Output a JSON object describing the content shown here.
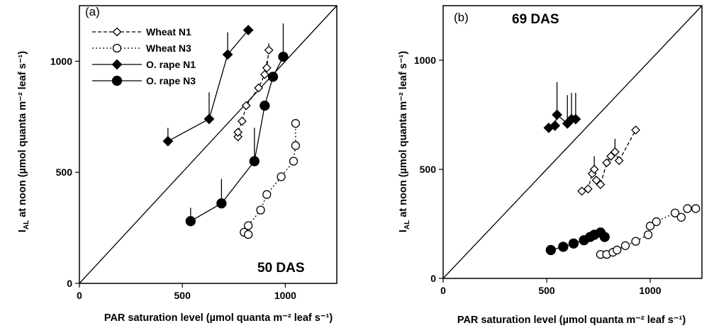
{
  "chart_data": [
    {
      "type": "scatter",
      "panel_label": "(a)",
      "annotation": "50 DAS",
      "xlabel": "PAR saturation level (µmol quanta m⁻² leaf s⁻¹)",
      "ylabel_main": "I",
      "ylabel_sub": "AL",
      "ylabel_rest": " at noon (µmol quanta m⁻² leaf s⁻¹)",
      "xlim": [
        0,
        1250
      ],
      "ylim": [
        0,
        1250
      ],
      "x_ticks": [
        0,
        500,
        1000
      ],
      "y_ticks": [
        0,
        500,
        1000
      ],
      "reference_line": "1:1",
      "legend": {
        "position": "top-left"
      },
      "series": [
        {
          "name": "Wheat N1",
          "marker": "diamond",
          "fill": "open",
          "line": "dashed",
          "points": [
            [
              770,
              660
            ],
            [
              770,
              680
            ],
            [
              790,
              730
            ],
            [
              810,
              800
            ],
            [
              870,
              880
            ],
            [
              900,
              940
            ],
            [
              910,
              970
            ],
            [
              920,
              1050
            ]
          ],
          "errors": [
            [
              910,
              30
            ],
            [
              920,
              30
            ]
          ]
        },
        {
          "name": "Wheat N3",
          "marker": "circle",
          "fill": "open",
          "line": "dotted",
          "points": [
            [
              800,
              230
            ],
            [
              820,
              220
            ],
            [
              820,
              260
            ],
            [
              880,
              330
            ],
            [
              910,
              400
            ],
            [
              980,
              480
            ],
            [
              1040,
              550
            ],
            [
              1050,
              620
            ],
            [
              1050,
              720
            ]
          ],
          "errors": []
        },
        {
          "name": "O. rape N1",
          "marker": "diamond",
          "fill": "filled",
          "line": "solid",
          "points": [
            [
              430,
              640
            ],
            [
              630,
              740
            ],
            [
              720,
              1030
            ],
            [
              820,
              1140
            ]
          ],
          "errors": [
            [
              430,
              60
            ],
            [
              630,
              120
            ],
            [
              720,
              100
            ]
          ]
        },
        {
          "name": "O. rape N3",
          "marker": "circle",
          "fill": "filled",
          "line": "solid",
          "points": [
            [
              540,
              280
            ],
            [
              690,
              360
            ],
            [
              850,
              550
            ],
            [
              900,
              800
            ],
            [
              940,
              930
            ],
            [
              990,
              1020
            ]
          ],
          "errors": [
            [
              540,
              60
            ],
            [
              690,
              110
            ],
            [
              850,
              150
            ],
            [
              990,
              150
            ]
          ]
        }
      ]
    },
    {
      "type": "scatter",
      "panel_label": "(b)",
      "annotation": "69 DAS",
      "xlabel": "PAR saturation level (µmol quanta m⁻² leaf s⁻¹)",
      "ylabel_main": "I",
      "ylabel_sub": "AL",
      "ylabel_rest": " at noon (µmol quanta m⁻² leaf s⁻¹)",
      "xlim": [
        0,
        1250
      ],
      "ylim": [
        0,
        1250
      ],
      "x_ticks": [
        0,
        500,
        1000
      ],
      "y_ticks": [
        0,
        500,
        1000
      ],
      "reference_line": "1:1",
      "series": [
        {
          "name": "Wheat N1",
          "marker": "diamond",
          "fill": "open",
          "line": "dashed",
          "points": [
            [
              670,
              400
            ],
            [
              700,
              410
            ],
            [
              720,
              480
            ],
            [
              730,
              500
            ],
            [
              740,
              450
            ],
            [
              760,
              430
            ],
            [
              790,
              530
            ],
            [
              810,
              560
            ],
            [
              830,
              580
            ],
            [
              850,
              540
            ],
            [
              930,
              680
            ]
          ],
          "errors": [
            [
              730,
              60
            ],
            [
              830,
              60
            ]
          ]
        },
        {
          "name": "Wheat N3",
          "marker": "circle",
          "fill": "open",
          "line": "dotted",
          "points": [
            [
              760,
              110
            ],
            [
              790,
              110
            ],
            [
              820,
              120
            ],
            [
              840,
              130
            ],
            [
              880,
              150
            ],
            [
              930,
              170
            ],
            [
              990,
              200
            ],
            [
              1000,
              240
            ],
            [
              1030,
              260
            ],
            [
              1120,
              300
            ],
            [
              1150,
              280
            ],
            [
              1180,
              320
            ],
            [
              1220,
              320
            ]
          ],
          "errors": []
        },
        {
          "name": "O. rape N1",
          "marker": "diamond",
          "fill": "filled",
          "line": "solid",
          "points": [
            [
              510,
              690
            ],
            [
              540,
              700
            ],
            [
              550,
              750
            ],
            [
              600,
              710
            ],
            [
              620,
              730
            ],
            [
              640,
              730
            ]
          ],
          "errors": [
            [
              550,
              150
            ],
            [
              600,
              130
            ],
            [
              620,
              120
            ],
            [
              640,
              120
            ]
          ]
        },
        {
          "name": "O. rape N3",
          "marker": "circle",
          "fill": "filled",
          "line": "solid",
          "points": [
            [
              520,
              130
            ],
            [
              580,
              145
            ],
            [
              630,
              160
            ],
            [
              680,
              175
            ],
            [
              710,
              190
            ],
            [
              730,
              200
            ],
            [
              760,
              210
            ],
            [
              780,
              190
            ]
          ],
          "errors": []
        }
      ]
    }
  ]
}
